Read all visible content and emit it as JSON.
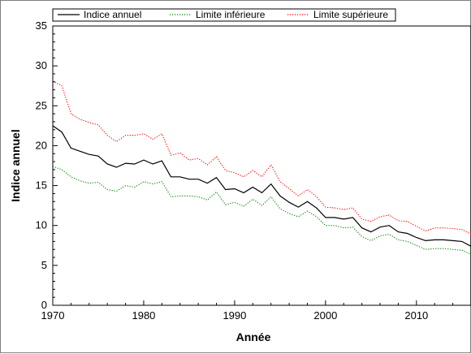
{
  "chart_data": {
    "type": "line",
    "xlabel": "Année",
    "ylabel": "Indice annuel",
    "xlim": [
      1970,
      2016
    ],
    "ylim": [
      0,
      35
    ],
    "xticks": [
      1970,
      1980,
      1990,
      2000,
      2010
    ],
    "yticks": [
      0,
      5,
      10,
      15,
      20,
      25,
      30,
      35
    ],
    "grid": false,
    "legend_position": "top",
    "x": [
      1970,
      1971,
      1972,
      1973,
      1974,
      1975,
      1976,
      1977,
      1978,
      1979,
      1980,
      1981,
      1982,
      1983,
      1984,
      1985,
      1986,
      1987,
      1988,
      1989,
      1990,
      1991,
      1992,
      1993,
      1994,
      1995,
      1996,
      1997,
      1998,
      1999,
      2000,
      2001,
      2002,
      2003,
      2004,
      2005,
      2006,
      2007,
      2008,
      2009,
      2010,
      2011,
      2012,
      2013,
      2014,
      2015,
      2016
    ],
    "series": [
      {
        "name": "Indice annuel",
        "color": "#000000",
        "dash": "solid",
        "values": [
          22.5,
          21.7,
          19.7,
          19.3,
          18.9,
          18.7,
          17.7,
          17.3,
          17.8,
          17.7,
          18.2,
          17.7,
          18.1,
          16.1,
          16.1,
          15.8,
          15.8,
          15.3,
          16.0,
          14.5,
          14.6,
          14.1,
          14.8,
          14.1,
          15.2,
          13.7,
          12.9,
          12.3,
          13.0,
          12.2,
          11.0,
          11.0,
          10.8,
          11.0,
          9.7,
          9.2,
          9.8,
          10.0,
          9.2,
          9.0,
          8.5,
          8.1,
          8.2,
          8.2,
          8.1,
          8.0,
          7.4
        ]
      },
      {
        "name": "Limite inférieure",
        "color": "#008000",
        "dash": "dotted",
        "values": [
          17.4,
          17.0,
          16.1,
          15.6,
          15.3,
          15.4,
          14.5,
          14.3,
          15.0,
          14.8,
          15.5,
          15.2,
          15.5,
          13.6,
          13.7,
          13.7,
          13.6,
          13.2,
          14.2,
          12.6,
          12.9,
          12.4,
          13.3,
          12.5,
          13.6,
          12.1,
          11.5,
          11.1,
          11.8,
          11.1,
          10.0,
          10.0,
          9.7,
          9.8,
          8.6,
          8.1,
          8.7,
          8.9,
          8.2,
          8.0,
          7.5,
          7.0,
          7.1,
          7.1,
          7.0,
          6.9,
          6.4
        ]
      },
      {
        "name": "Limite supérieure",
        "color": "#ff0000",
        "dash": "dotted",
        "values": [
          28.1,
          27.5,
          24.0,
          23.3,
          22.9,
          22.6,
          21.3,
          20.5,
          21.3,
          21.3,
          21.5,
          20.8,
          21.5,
          18.8,
          19.1,
          18.2,
          18.4,
          17.6,
          18.6,
          16.9,
          16.6,
          16.1,
          16.9,
          16.1,
          17.6,
          15.5,
          14.6,
          13.7,
          14.5,
          13.6,
          12.3,
          12.2,
          12.0,
          12.2,
          10.8,
          10.5,
          11.1,
          11.3,
          10.6,
          10.5,
          9.9,
          9.3,
          9.7,
          9.7,
          9.6,
          9.5,
          8.9
        ]
      }
    ]
  }
}
